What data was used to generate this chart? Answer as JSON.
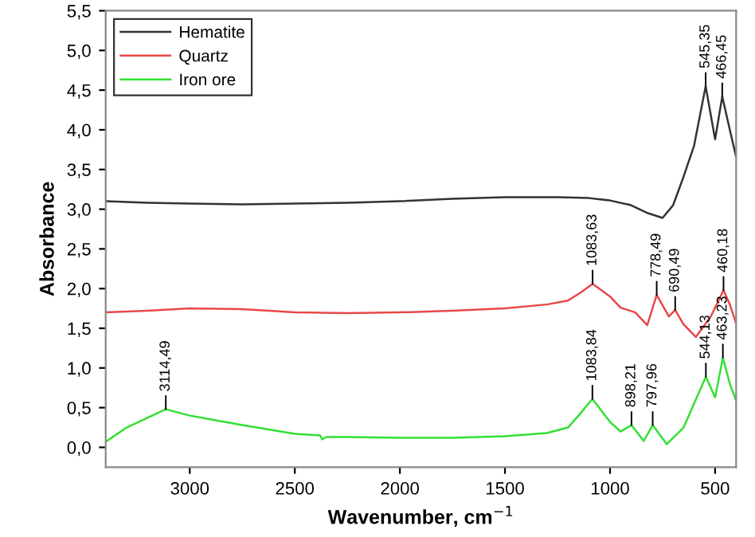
{
  "chart_data": {
    "type": "line",
    "xlabel": "Wavenumber, cm$^{−1}$",
    "ylabel": "Absorbance",
    "xlim": [
      3400,
      400
    ],
    "ylim": [
      -0.25,
      5.5
    ],
    "xticks": [
      3000,
      2500,
      2000,
      1500,
      1000,
      500
    ],
    "yticks": [
      {
        "value": 0,
        "label": "0,0"
      },
      {
        "value": 0.5,
        "label": "0,5"
      },
      {
        "value": 1,
        "label": "1,0"
      },
      {
        "value": 1.5,
        "label": "1,5"
      },
      {
        "value": 2,
        "label": "2,0"
      },
      {
        "value": 2.5,
        "label": "2,5"
      },
      {
        "value": 3,
        "label": "3,0"
      },
      {
        "value": 3.5,
        "label": "3,5"
      },
      {
        "value": 4,
        "label": "4,0"
      },
      {
        "value": 4.5,
        "label": "4,5"
      },
      {
        "value": 5,
        "label": "5,0"
      },
      {
        "value": 5.5,
        "label": "5,5"
      }
    ],
    "legend": "top left",
    "grid": false,
    "series": [
      {
        "name": "Hematite",
        "color": "#333333",
        "x": [
          3400,
          3200,
          3000,
          2750,
          2500,
          2250,
          2000,
          1750,
          1500,
          1250,
          1100,
          1000,
          900,
          820,
          750,
          700,
          650,
          600,
          545,
          500,
          466,
          430,
          400
        ],
        "values": [
          3.1,
          3.08,
          3.07,
          3.06,
          3.07,
          3.08,
          3.1,
          3.13,
          3.15,
          3.15,
          3.14,
          3.11,
          3.05,
          2.95,
          2.89,
          3.05,
          3.41,
          3.8,
          4.55,
          3.88,
          4.42,
          4.0,
          3.66
        ]
      },
      {
        "name": "Quartz",
        "color": "#e8484a",
        "x": [
          3400,
          3200,
          3000,
          2750,
          2500,
          2250,
          2000,
          1750,
          1500,
          1300,
          1200,
          1140,
          1083,
          1000,
          950,
          880,
          823,
          778,
          720,
          690,
          650,
          592,
          520,
          460,
          430,
          400
        ],
        "values": [
          1.7,
          1.72,
          1.75,
          1.74,
          1.7,
          1.69,
          1.7,
          1.72,
          1.75,
          1.8,
          1.85,
          1.95,
          2.06,
          1.9,
          1.76,
          1.7,
          1.54,
          1.92,
          1.65,
          1.73,
          1.55,
          1.39,
          1.65,
          1.98,
          1.8,
          1.56
        ]
      },
      {
        "name": "Iron ore",
        "color": "#33e033",
        "x": [
          3400,
          3300,
          3114,
          3000,
          2750,
          2500,
          2380,
          2370,
          2350,
          2250,
          2000,
          1750,
          1500,
          1300,
          1200,
          1150,
          1084,
          1000,
          950,
          898,
          840,
          797,
          730,
          650,
          544,
          500,
          463,
          430,
          400
        ],
        "values": [
          0.07,
          0.25,
          0.48,
          0.4,
          0.28,
          0.17,
          0.15,
          0.1,
          0.13,
          0.13,
          0.12,
          0.12,
          0.14,
          0.18,
          0.25,
          0.4,
          0.61,
          0.32,
          0.2,
          0.28,
          0.08,
          0.28,
          0.04,
          0.25,
          0.89,
          0.63,
          1.13,
          0.8,
          0.59
        ]
      }
    ],
    "annotations": [
      {
        "text": "545,35",
        "x": 545,
        "y": 4.55
      },
      {
        "text": "466,45",
        "x": 466,
        "y": 4.42
      },
      {
        "text": "1083,63",
        "x": 1083,
        "y": 2.06
      },
      {
        "text": "778,49",
        "x": 778,
        "y": 1.92
      },
      {
        "text": "690,49",
        "x": 690,
        "y": 1.73
      },
      {
        "text": "460,18",
        "x": 460,
        "y": 1.98
      },
      {
        "text": "3114,49",
        "x": 3114,
        "y": 0.48
      },
      {
        "text": "1083,84",
        "x": 1084,
        "y": 0.61
      },
      {
        "text": "898,21",
        "x": 898,
        "y": 0.28
      },
      {
        "text": "797,96",
        "x": 797,
        "y": 0.28
      },
      {
        "text": "544,13",
        "x": 544,
        "y": 0.89
      },
      {
        "text": "463,23",
        "x": 463,
        "y": 1.13
      }
    ]
  }
}
